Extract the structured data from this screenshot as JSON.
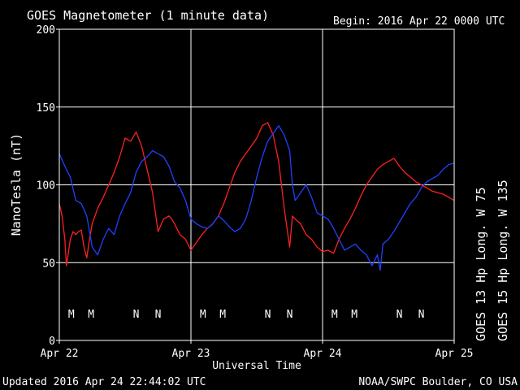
{
  "header": {
    "title": "GOES Magnetometer (1 minute data)",
    "begin": "Begin:  2016 Apr 22 0000 UTC"
  },
  "footer": {
    "updated": "Updated 2016 Apr 24 22:44:02 UTC",
    "credit": "NOAA/SWPC Boulder, CO USA"
  },
  "colors": {
    "goes13": "#ff2020",
    "goes15": "#2040ff",
    "background": "#000000",
    "foreground": "#ffffff"
  },
  "chart_data": {
    "type": "line",
    "title": "GOES Magnetometer (1 minute data)",
    "xlabel": "Universal Time",
    "ylabel": "NanoTesla (nT)",
    "xlim": [
      0,
      72
    ],
    "ylim": [
      0,
      200
    ],
    "x_ticks": [
      {
        "hour": 0,
        "label": "Apr 22"
      },
      {
        "hour": 24,
        "label": "Apr 23"
      },
      {
        "hour": 48,
        "label": "Apr 24"
      },
      {
        "hour": 72,
        "label": "Apr 25"
      }
    ],
    "y_ticks": [
      0,
      50,
      100,
      150,
      200
    ],
    "grid": true,
    "series": [
      {
        "name": "GOES 13 Hp  Long. W 75",
        "color": "#ff2020",
        "x": [
          0,
          0.5,
          1,
          1.3,
          1.6,
          2,
          2.5,
          3,
          3.5,
          4,
          4.5,
          5,
          5.5,
          6,
          7,
          8,
          9,
          10,
          11,
          12,
          13,
          14,
          15,
          16,
          17,
          18,
          19,
          20,
          20.5,
          21,
          22,
          23,
          24,
          25,
          26,
          27,
          28,
          29,
          30,
          31,
          32,
          33,
          34,
          35,
          36,
          37,
          38,
          39,
          40,
          41,
          42,
          42.5,
          43,
          44,
          45,
          46,
          47,
          48,
          49,
          50,
          51,
          52,
          53,
          54,
          55,
          56,
          57,
          58,
          59,
          60,
          61,
          62,
          63,
          64,
          65,
          66,
          67,
          68,
          69,
          70,
          71,
          72
        ],
        "y": [
          88,
          80,
          65,
          48,
          55,
          65,
          70,
          68,
          70,
          71,
          60,
          53,
          65,
          75,
          85,
          92,
          100,
          108,
          118,
          130,
          128,
          134,
          125,
          110,
          95,
          70,
          78,
          80,
          78,
          75,
          68,
          65,
          58,
          63,
          68,
          72,
          75,
          80,
          88,
          98,
          108,
          115,
          120,
          125,
          130,
          138,
          140,
          132,
          115,
          85,
          60,
          80,
          78,
          75,
          68,
          65,
          60,
          57,
          58,
          56,
          65,
          72,
          78,
          85,
          93,
          100,
          105,
          110,
          113,
          115,
          117,
          112,
          108,
          105,
          102,
          100,
          98,
          96,
          95,
          94,
          92,
          90
        ]
      },
      {
        "name": "GOES 15 Hp  Long. W 135",
        "color": "#2040ff",
        "x": [
          0,
          1,
          2,
          3,
          4,
          5,
          6,
          7,
          8,
          9,
          10,
          11,
          12,
          13,
          14,
          15,
          16,
          17,
          18,
          19,
          20,
          21,
          22,
          23,
          24,
          25,
          26,
          27,
          28,
          29,
          30,
          31,
          32,
          33,
          34,
          35,
          36,
          37,
          38,
          39,
          40,
          41,
          42,
          42.5,
          43,
          44,
          45,
          46,
          47,
          48,
          49,
          50,
          51,
          52,
          53,
          54,
          55,
          56,
          57,
          58,
          58.5,
          59,
          60,
          61,
          62,
          63,
          64,
          65,
          66,
          67,
          68,
          69,
          70,
          71,
          72
        ],
        "y": [
          120,
          112,
          105,
          90,
          88,
          80,
          60,
          55,
          65,
          72,
          68,
          80,
          88,
          95,
          108,
          115,
          118,
          122,
          120,
          118,
          112,
          102,
          98,
          90,
          78,
          75,
          73,
          72,
          75,
          80,
          77,
          73,
          70,
          72,
          78,
          90,
          105,
          118,
          128,
          133,
          138,
          132,
          122,
          100,
          90,
          95,
          100,
          92,
          82,
          80,
          78,
          72,
          65,
          58,
          60,
          62,
          58,
          55,
          48,
          55,
          45,
          62,
          65,
          70,
          76,
          82,
          88,
          92,
          98,
          102,
          104,
          106,
          110,
          113,
          114
        ]
      }
    ],
    "annotations": [
      {
        "label": "M",
        "hour": 2.2,
        "series": "GOES 13 Hp  Long. W 75"
      },
      {
        "label": "M",
        "hour": 5.8,
        "series": "GOES 15 Hp  Long. W 135"
      },
      {
        "label": "N",
        "hour": 14.0,
        "series": "GOES 13 Hp  Long. W 75"
      },
      {
        "label": "N",
        "hour": 18.0,
        "series": "GOES 15 Hp  Long. W 135"
      },
      {
        "label": "M",
        "hour": 26.2,
        "series": "GOES 13 Hp  Long. W 75"
      },
      {
        "label": "M",
        "hour": 29.8,
        "series": "GOES 15 Hp  Long. W 135"
      },
      {
        "label": "N",
        "hour": 38.0,
        "series": "GOES 13 Hp  Long. W 75"
      },
      {
        "label": "N",
        "hour": 42.0,
        "series": "GOES 15 Hp  Long. W 135"
      },
      {
        "label": "M",
        "hour": 50.2,
        "series": "GOES 13 Hp  Long. W 75"
      },
      {
        "label": "M",
        "hour": 53.8,
        "series": "GOES 15 Hp  Long. W 135"
      },
      {
        "label": "N",
        "hour": 62.0,
        "series": "GOES 13 Hp  Long. W 75"
      },
      {
        "label": "N",
        "hour": 66.0,
        "series": "GOES 15 Hp  Long. W 135"
      }
    ]
  }
}
